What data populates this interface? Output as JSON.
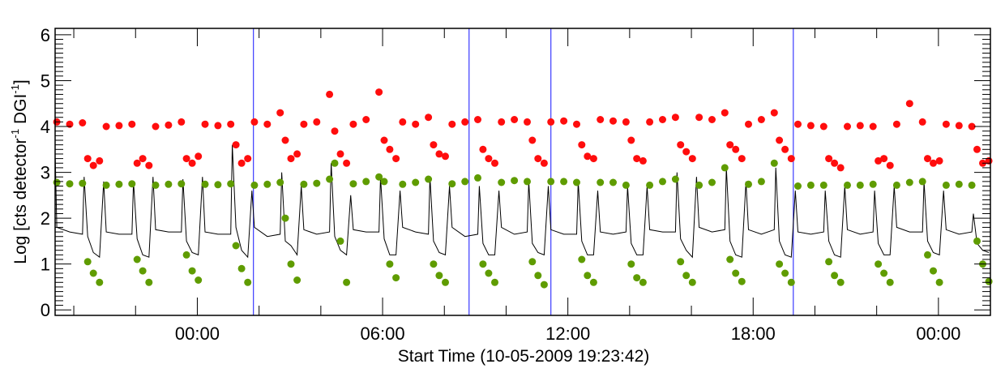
{
  "chart_data": {
    "type": "scatter",
    "xlabel": "Start Time (10-05-2009 19:23:42)",
    "ylabel_parts": [
      "Log [cts detector",
      "-1",
      " DGI",
      "-1",
      "]"
    ],
    "xlim": [
      "19:23:42",
      "01:41"
    ],
    "ylim": [
      -0.12,
      6.14
    ],
    "y_ticks": [
      "0",
      "1",
      "2",
      "3",
      "4",
      "5",
      "6"
    ],
    "x_tick_labels": [
      {
        "t": "00:00",
        "label": "00:00"
      },
      {
        "t": "06:00",
        "label": "06:00"
      },
      {
        "t": "12:00",
        "label": "12:00"
      },
      {
        "t": "18:00",
        "label": "18:00"
      },
      {
        "t": "24:00",
        "label": "00:00"
      }
    ],
    "x_minor_tick_hours": 2,
    "y_minor_tick_step": 0.1,
    "grid": false,
    "colors": {
      "red_series": "#ff0d0d",
      "green_series": "#5f9c00",
      "line_series": "#000000",
      "markers": "#3a3aff"
    },
    "vertical_markers": [
      "01:49",
      "08:48",
      "11:27",
      "19:18"
    ],
    "x": [
      "19:24",
      "19:27",
      "19:52",
      "20:17",
      "20:20",
      "20:27",
      "20:38",
      "20:50",
      "20:58",
      "21:03",
      "21:28",
      "21:53",
      "21:56",
      "22:03",
      "22:14",
      "22:26",
      "22:34",
      "22:39",
      "23:04",
      "23:29",
      "23:32",
      "23:39",
      "23:50",
      "00:02",
      "00:10",
      "00:15",
      "00:40",
      "01:05",
      "01:08",
      "01:15",
      "01:26",
      "01:38",
      "01:46",
      "01:51",
      "02:16",
      "02:41",
      "02:44",
      "02:51",
      "03:02",
      "03:14",
      "03:22",
      "03:27",
      "03:52",
      "04:17",
      "04:20",
      "04:27",
      "04:38",
      "04:50",
      "04:58",
      "05:03",
      "05:28",
      "05:53",
      "05:56",
      "06:03",
      "06:14",
      "06:26",
      "06:34",
      "06:39",
      "07:04",
      "07:29",
      "07:32",
      "07:39",
      "07:50",
      "08:02",
      "08:10",
      "08:15",
      "08:40",
      "09:05",
      "09:08",
      "09:15",
      "09:26",
      "09:38",
      "09:46",
      "09:51",
      "10:16",
      "10:41",
      "10:44",
      "10:51",
      "11:02",
      "11:14",
      "11:22",
      "11:27",
      "11:52",
      "12:17",
      "12:20",
      "12:27",
      "12:38",
      "12:50",
      "12:58",
      "13:03",
      "13:28",
      "13:53",
      "13:56",
      "14:03",
      "14:14",
      "14:26",
      "14:34",
      "14:39",
      "15:04",
      "15:29",
      "15:32",
      "15:39",
      "15:50",
      "16:02",
      "16:10",
      "16:15",
      "16:40",
      "17:05",
      "17:08",
      "17:15",
      "17:26",
      "17:38",
      "17:46",
      "17:51",
      "18:16",
      "18:41",
      "18:44",
      "18:51",
      "19:02",
      "19:14",
      "19:22",
      "19:27",
      "19:52",
      "20:17",
      "20:20",
      "20:27",
      "20:38",
      "20:50",
      "20:58",
      "21:03",
      "21:28",
      "21:53",
      "21:56",
      "22:03",
      "22:14",
      "22:26",
      "22:34",
      "22:39",
      "23:04",
      "23:29",
      "23:32",
      "23:39",
      "23:50",
      "00:02",
      "00:10",
      "00:15",
      "00:40",
      "01:05",
      "01:08",
      "01:15",
      "01:26",
      "01:38"
    ],
    "series": [
      {
        "kind": "line",
        "color_key": "line_series",
        "values": [
          3.3,
          1.8,
          1.7,
          1.65,
          2.9,
          1.6,
          1.25,
          1.15,
          2.8,
          1.7,
          1.65,
          1.65,
          2.8,
          1.55,
          1.2,
          1.15,
          2.9,
          1.75,
          1.7,
          1.7,
          2.85,
          1.5,
          1.25,
          1.2,
          2.9,
          1.7,
          1.65,
          1.65,
          3.6,
          1.8,
          1.3,
          1.15,
          2.6,
          1.8,
          1.6,
          1.65,
          3.0,
          1.5,
          1.4,
          1.2,
          2.7,
          1.75,
          1.65,
          1.7,
          3.2,
          1.6,
          1.3,
          1.2,
          2.5,
          1.75,
          1.7,
          1.7,
          2.9,
          1.55,
          1.2,
          1.2,
          2.6,
          1.8,
          1.7,
          1.65,
          2.9,
          1.5,
          1.25,
          1.2,
          2.7,
          1.8,
          1.6,
          1.65,
          2.7,
          1.45,
          1.2,
          1.2,
          2.6,
          1.8,
          1.65,
          1.7,
          2.8,
          1.45,
          1.25,
          1.2,
          2.7,
          1.75,
          1.65,
          1.65,
          2.8,
          1.5,
          1.2,
          1.2,
          2.6,
          1.7,
          1.65,
          1.7,
          2.7,
          1.45,
          1.2,
          1.2,
          2.7,
          1.75,
          1.7,
          1.7,
          3.0,
          1.55,
          1.3,
          1.15,
          2.9,
          1.8,
          1.7,
          1.75,
          3.1,
          1.5,
          1.2,
          1.15,
          2.8,
          1.75,
          1.65,
          1.75,
          3.1,
          1.5,
          1.2,
          1.15,
          2.6,
          1.7,
          1.65,
          1.7,
          2.6,
          1.5,
          1.2,
          1.15,
          2.7,
          1.75,
          1.65,
          1.7,
          2.6,
          1.45,
          1.2,
          1.2,
          2.7,
          1.8,
          1.7,
          1.7,
          2.8,
          1.5,
          1.25,
          1.2,
          2.6,
          1.75,
          1.65,
          1.7,
          2.1,
          1.45,
          1.3,
          1.25
        ]
      },
      {
        "kind": "dots",
        "color_key": "red_series",
        "values": [
          null,
          4.1,
          4.05,
          4.08,
          null,
          3.3,
          3.15,
          3.25,
          null,
          4.0,
          4.02,
          4.05,
          null,
          3.2,
          3.3,
          3.15,
          null,
          4.0,
          4.03,
          4.1,
          null,
          3.3,
          3.2,
          3.35,
          null,
          4.05,
          4.02,
          4.05,
          null,
          3.6,
          3.2,
          3.3,
          null,
          4.1,
          4.05,
          4.3,
          null,
          3.7,
          3.3,
          3.4,
          null,
          4.05,
          4.1,
          4.7,
          null,
          3.9,
          3.4,
          3.2,
          null,
          4.05,
          4.15,
          4.75,
          null,
          3.7,
          3.5,
          3.3,
          null,
          4.1,
          4.05,
          4.2,
          null,
          3.6,
          3.4,
          3.35,
          null,
          4.05,
          4.1,
          4.15,
          null,
          3.5,
          3.3,
          3.2,
          null,
          4.1,
          4.15,
          4.1,
          null,
          3.7,
          3.3,
          3.2,
          null,
          4.1,
          4.12,
          4.05,
          null,
          3.6,
          3.35,
          3.3,
          null,
          4.15,
          4.12,
          4.1,
          null,
          3.7,
          3.3,
          3.25,
          null,
          4.1,
          4.15,
          4.2,
          null,
          3.6,
          3.45,
          3.3,
          null,
          4.2,
          4.15,
          4.3,
          null,
          3.6,
          3.5,
          3.3,
          null,
          4.05,
          4.15,
          4.3,
          null,
          3.7,
          3.5,
          3.3,
          null,
          4.05,
          4.02,
          4.0,
          null,
          3.3,
          3.2,
          3.1,
          null,
          4.0,
          4.02,
          4.0,
          null,
          3.25,
          3.3,
          3.15,
          null,
          4.05,
          4.5,
          4.1,
          null,
          3.3,
          3.2,
          3.25,
          null,
          4.05,
          4.02,
          4.0,
          null,
          3.5,
          3.2,
          3.25
        ]
      },
      {
        "kind": "dots",
        "color_key": "green_series",
        "values": [
          null,
          2.78,
          2.75,
          2.76,
          null,
          1.05,
          0.8,
          0.6,
          null,
          2.72,
          2.74,
          2.75,
          null,
          1.1,
          0.85,
          0.6,
          null,
          2.72,
          2.74,
          2.75,
          null,
          1.2,
          0.85,
          0.65,
          null,
          2.74,
          2.73,
          2.75,
          null,
          1.4,
          0.9,
          0.6,
          null,
          2.72,
          2.74,
          2.78,
          null,
          2.0,
          1.0,
          0.65,
          null,
          2.74,
          2.76,
          2.85,
          null,
          3.2,
          1.5,
          0.6,
          null,
          2.75,
          2.8,
          2.9,
          null,
          2.8,
          1.0,
          0.7,
          null,
          2.74,
          2.78,
          2.85,
          null,
          1.0,
          0.75,
          0.6,
          null,
          2.75,
          2.8,
          2.88,
          null,
          1.0,
          0.8,
          0.6,
          null,
          2.78,
          2.82,
          2.8,
          null,
          1.05,
          0.75,
          0.55,
          null,
          2.8,
          2.8,
          2.78,
          null,
          1.1,
          0.75,
          0.6,
          null,
          2.78,
          2.78,
          2.72,
          null,
          1.0,
          0.7,
          0.6,
          null,
          2.72,
          2.8,
          2.85,
          null,
          1.05,
          0.75,
          0.6,
          null,
          2.72,
          2.78,
          3.1,
          null,
          1.1,
          0.8,
          0.62,
          null,
          2.74,
          2.8,
          3.2,
          null,
          1.0,
          0.8,
          0.6,
          null,
          2.7,
          2.72,
          2.72,
          null,
          1.05,
          0.75,
          0.6,
          null,
          2.72,
          2.72,
          2.74,
          null,
          1.0,
          0.8,
          0.6,
          null,
          2.72,
          2.78,
          2.8,
          null,
          1.2,
          0.85,
          0.6,
          null,
          2.72,
          2.74,
          2.72,
          null,
          1.5,
          1.0,
          0.62
        ]
      }
    ]
  }
}
